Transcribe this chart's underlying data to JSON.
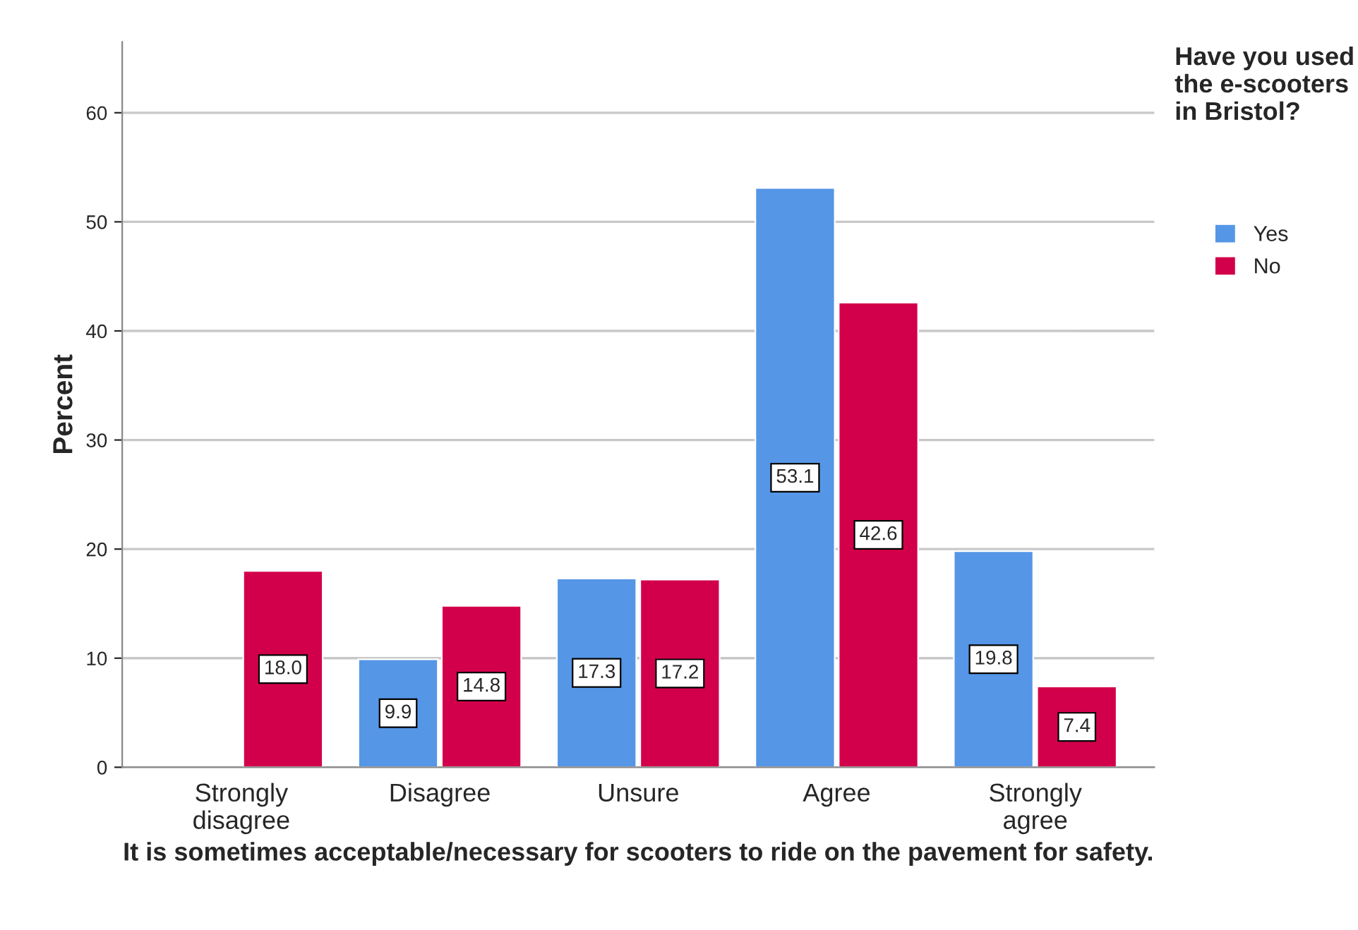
{
  "chart_data": {
    "type": "bar",
    "xlabel": "It is sometimes acceptable/necessary for scooters to ride on the pavement for safety.",
    "ylabel": "Percent",
    "legend_title": "Have you used the e-scooters in Bristol?",
    "categories": [
      "Strongly\ndisagree",
      "Disagree",
      "Unsure",
      "Agree",
      "Strongly\nagree"
    ],
    "series": [
      {
        "name": "Yes",
        "color": "#5596e6",
        "values": [
          null,
          9.9,
          17.3,
          53.1,
          19.8
        ],
        "value_labels": [
          null,
          "9.9",
          "17.3",
          "53.1",
          "19.8"
        ]
      },
      {
        "name": "No",
        "color": "#d2004b",
        "values": [
          18.0,
          14.8,
          17.2,
          42.6,
          7.4
        ],
        "value_labels": [
          "18.0",
          "14.8",
          "17.2",
          "42.6",
          "7.4"
        ]
      }
    ],
    "ylim": [
      0,
      66.5
    ],
    "yticks": [
      0,
      10,
      20,
      30,
      40,
      50,
      60
    ],
    "grid": "y",
    "legend": "top right"
  }
}
